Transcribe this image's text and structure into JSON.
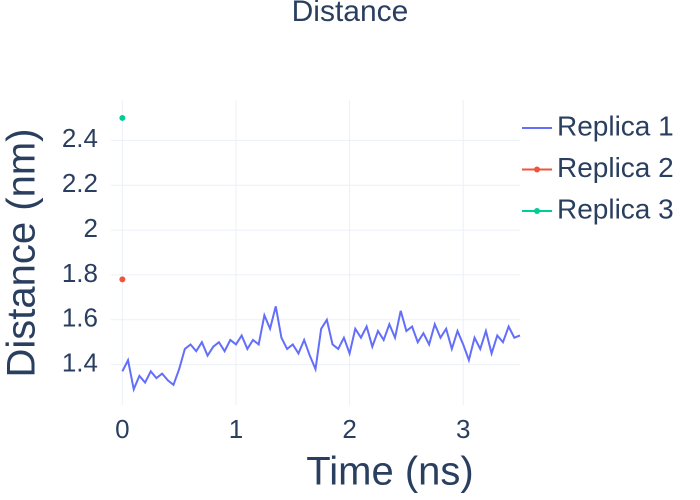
{
  "chart_data": {
    "type": "line",
    "title": "Distance",
    "x_label": "Time (ns)",
    "y_label": "Distance (nm)",
    "xlim": [
      -0.1,
      3.5
    ],
    "xticks": [
      0,
      1,
      2,
      3
    ],
    "ylim": [
      1.22,
      2.58
    ],
    "yticks": [
      1.4,
      1.6,
      1.8,
      2,
      2.2,
      2.4
    ],
    "grid": true,
    "legend": "right",
    "series": [
      {
        "name": "Replica 1",
        "color": "#636efa",
        "mode": "lines",
        "x": [
          0,
          0.05,
          0.1,
          0.15,
          0.2,
          0.25,
          0.3,
          0.35,
          0.4,
          0.45,
          0.5,
          0.55,
          0.6,
          0.65,
          0.7,
          0.75,
          0.8,
          0.85,
          0.9,
          0.95,
          1,
          1.05,
          1.1,
          1.15,
          1.2,
          1.25,
          1.3,
          1.35,
          1.4,
          1.45,
          1.5,
          1.55,
          1.6,
          1.65,
          1.7,
          1.75,
          1.8,
          1.85,
          1.9,
          1.95,
          2,
          2.05,
          2.1,
          2.15,
          2.2,
          2.25,
          2.3,
          2.35,
          2.4,
          2.45,
          2.5,
          2.55,
          2.6,
          2.65,
          2.7,
          2.75,
          2.8,
          2.85,
          2.9,
          2.95,
          3,
          3.05,
          3.1,
          3.15,
          3.2,
          3.25,
          3.3,
          3.35,
          3.4,
          3.45,
          3.5
        ],
        "values": [
          1.37,
          1.42,
          1.29,
          1.35,
          1.32,
          1.37,
          1.34,
          1.36,
          1.33,
          1.31,
          1.38,
          1.47,
          1.49,
          1.46,
          1.5,
          1.44,
          1.48,
          1.5,
          1.46,
          1.51,
          1.49,
          1.53,
          1.47,
          1.51,
          1.49,
          1.62,
          1.56,
          1.66,
          1.52,
          1.47,
          1.49,
          1.45,
          1.51,
          1.44,
          1.38,
          1.56,
          1.6,
          1.49,
          1.47,
          1.52,
          1.45,
          1.56,
          1.52,
          1.57,
          1.48,
          1.55,
          1.51,
          1.58,
          1.52,
          1.64,
          1.55,
          1.57,
          1.5,
          1.54,
          1.49,
          1.58,
          1.52,
          1.56,
          1.47,
          1.55,
          1.49,
          1.42,
          1.52,
          1.47,
          1.55,
          1.45,
          1.53,
          1.5,
          1.57,
          1.52,
          1.53
        ]
      },
      {
        "name": "Replica 2",
        "color": "#EF553B",
        "mode": "lines+markers",
        "x": [
          0
        ],
        "values": [
          1.78
        ]
      },
      {
        "name": "Replica 3",
        "color": "#00cc96",
        "mode": "lines+markers",
        "x": [
          0
        ],
        "values": [
          2.5
        ]
      }
    ]
  }
}
